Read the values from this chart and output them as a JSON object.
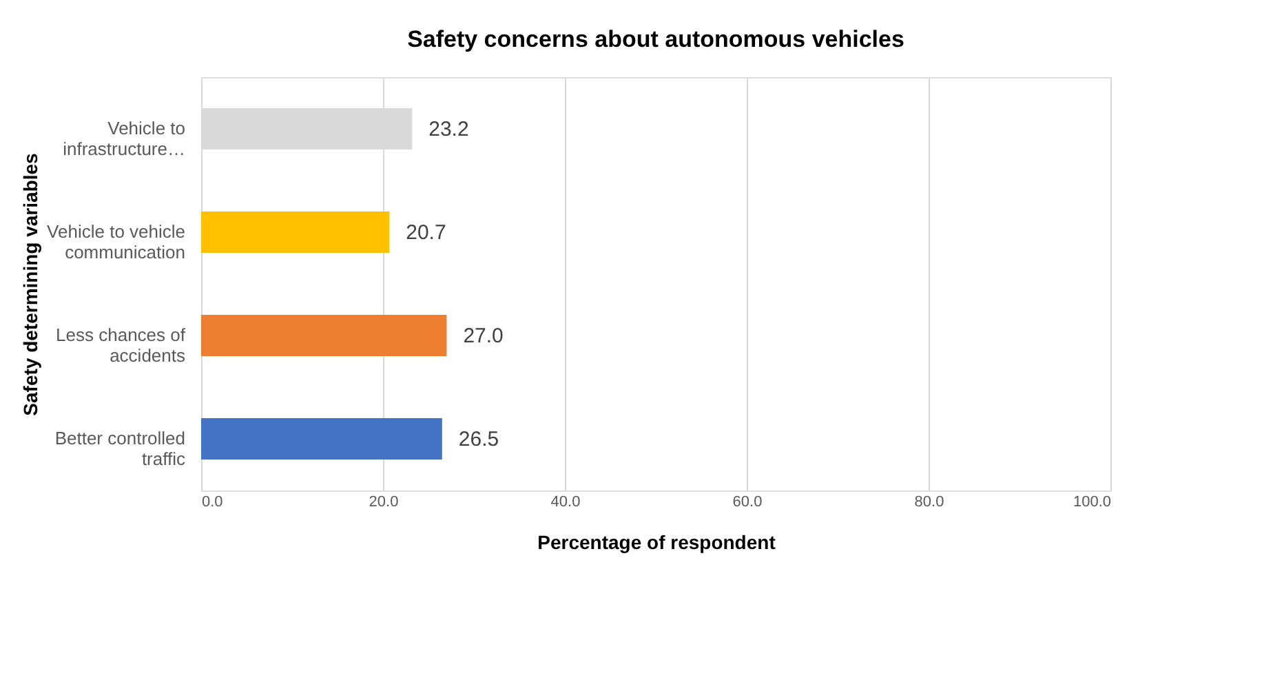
{
  "chart_data": {
    "type": "bar",
    "orientation": "horizontal",
    "title": "Safety concerns about autonomous vehicles",
    "xlabel": "Percentage of respondent",
    "ylabel": "Safety determining variables",
    "categories": [
      "Vehicle to infrastructure…",
      "Vehicle to vehicle communication",
      "Less chances of accidents",
      "Better controlled traffic"
    ],
    "values": [
      23.2,
      20.7,
      27.0,
      26.5
    ],
    "colors": [
      "#d9d9d9",
      "#ffc000",
      "#ed7d31",
      "#4472c4"
    ],
    "value_labels": [
      "23.2",
      "20.7",
      "27.0",
      "26.5"
    ],
    "xlim": [
      0,
      100
    ],
    "xticks": [
      {
        "value": 0,
        "label": "0.0"
      },
      {
        "value": 20,
        "label": "20.0"
      },
      {
        "value": 40,
        "label": "40.0"
      },
      {
        "value": 60,
        "label": "60.0"
      },
      {
        "value": 80,
        "label": "80.0"
      },
      {
        "value": 100,
        "label": "100.0"
      }
    ],
    "grid": "x",
    "legend": false
  }
}
